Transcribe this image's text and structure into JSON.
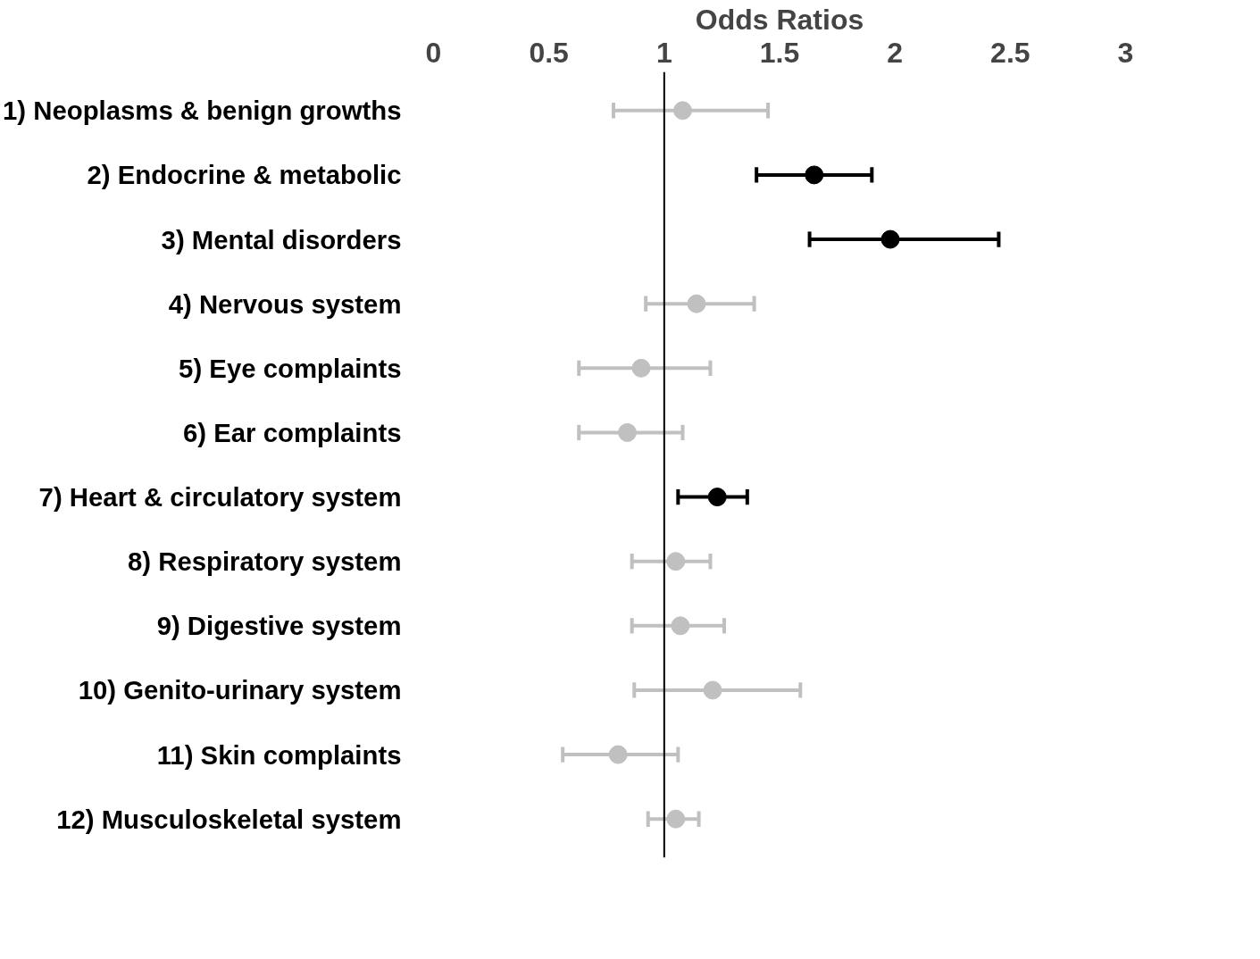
{
  "chart_data": {
    "type": "scatter",
    "orientation": "horizontal",
    "xlabel": "Odds Ratios",
    "categories": [
      "1) Neoplasms & benign growths",
      "2) Endocrine & metabolic",
      "3) Mental disorders",
      "4) Nervous system",
      "5) Eye complaints",
      "6) Ear complaints",
      "7) Heart & circulatory system",
      "8) Respiratory system",
      "9) Digestive system",
      "10) Genito-urinary system",
      "11) Skin complaints",
      "12) Musculoskeletal system"
    ],
    "values": [
      1.08,
      1.65,
      1.98,
      1.14,
      0.9,
      0.84,
      1.23,
      1.05,
      1.07,
      1.21,
      0.8,
      1.05
    ],
    "errors": [
      [
        0.78,
        1.45
      ],
      [
        1.4,
        1.9
      ],
      [
        1.63,
        2.45
      ],
      [
        0.92,
        1.39
      ],
      [
        0.63,
        1.2
      ],
      [
        0.63,
        1.08
      ],
      [
        1.06,
        1.36
      ],
      [
        0.86,
        1.2
      ],
      [
        0.86,
        1.26
      ],
      [
        0.87,
        1.59
      ],
      [
        0.56,
        1.06
      ],
      [
        0.93,
        1.15
      ]
    ],
    "colors": [
      "#c0c0c0",
      "#000000",
      "#000000",
      "#c0c0c0",
      "#c0c0c0",
      "#c0c0c0",
      "#000000",
      "#c0c0c0",
      "#c0c0c0",
      "#c0c0c0",
      "#c0c0c0",
      "#c0c0c0"
    ],
    "xlim": [
      0,
      3
    ],
    "xticks": [
      0,
      0.5,
      1,
      1.5,
      2,
      2.5,
      3
    ],
    "ref_lines": [
      {
        "axis": "x",
        "value": 1,
        "color": "#000000"
      }
    ],
    "marker": "circle",
    "grid": false
  }
}
